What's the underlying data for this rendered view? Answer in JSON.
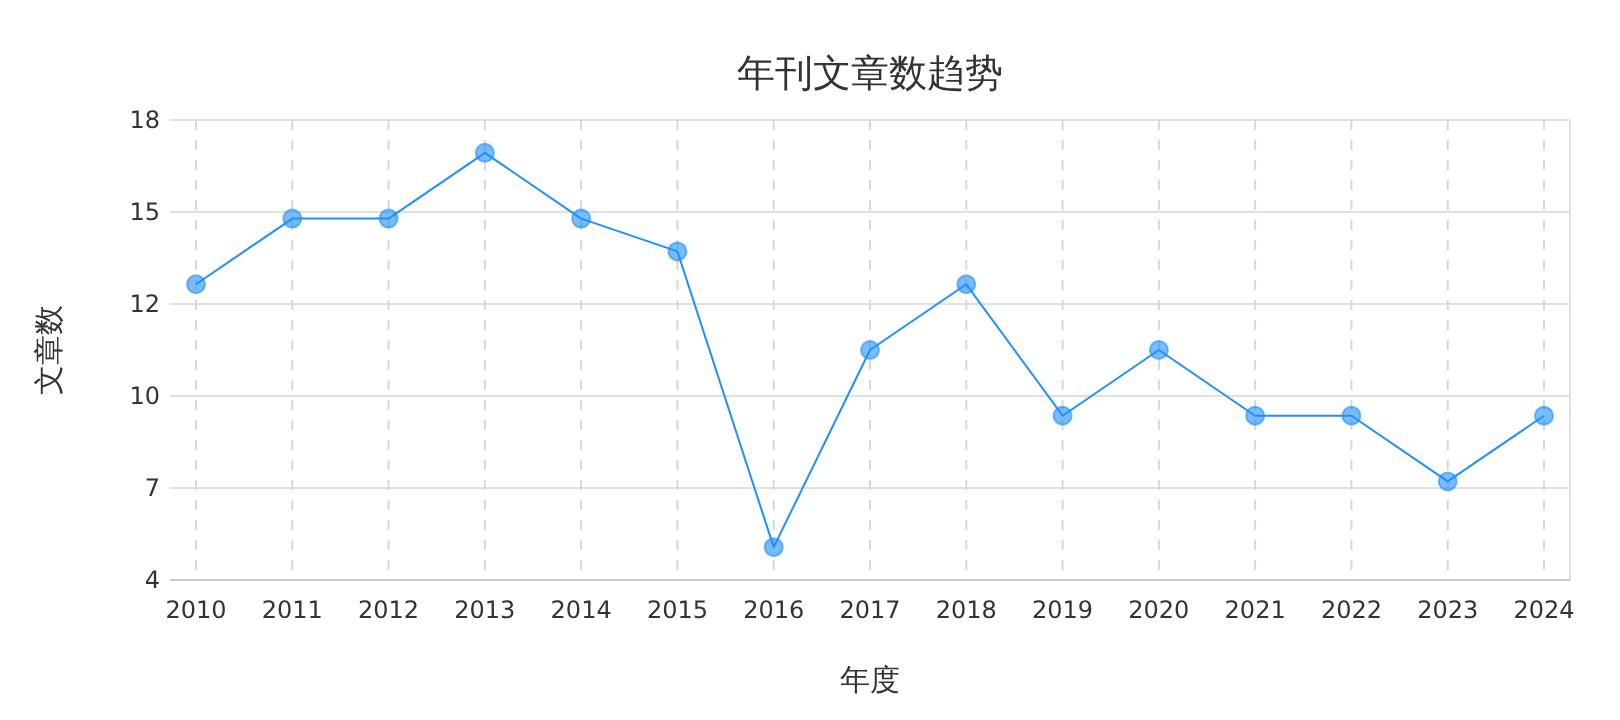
{
  "chart_data": {
    "type": "line",
    "title": "年刊文章数趋势",
    "xlabel": "年度",
    "ylabel": "文章数",
    "categories": [
      "2010",
      "2011",
      "2012",
      "2013",
      "2014",
      "2015",
      "2016",
      "2017",
      "2018",
      "2019",
      "2020",
      "2021",
      "2022",
      "2023",
      "2024"
    ],
    "series": [
      {
        "color": "#1e90ff",
        "values": [
          13,
          15,
          15,
          17,
          15,
          14,
          5,
          11,
          13,
          9,
          11,
          9,
          9,
          7,
          9
        ]
      }
    ],
    "ylim": [
      4,
      18
    ],
    "yticks": [
      4,
      {
        "value": 6.8,
        "label": "7"
      },
      {
        "value": 9.6,
        "label": "10"
      },
      {
        "value": 12.4,
        "label": "12"
      },
      {
        "value": 15.2,
        "label": "15"
      },
      18
    ],
    "grid": true,
    "marker": "circle",
    "line_style": "solid"
  }
}
